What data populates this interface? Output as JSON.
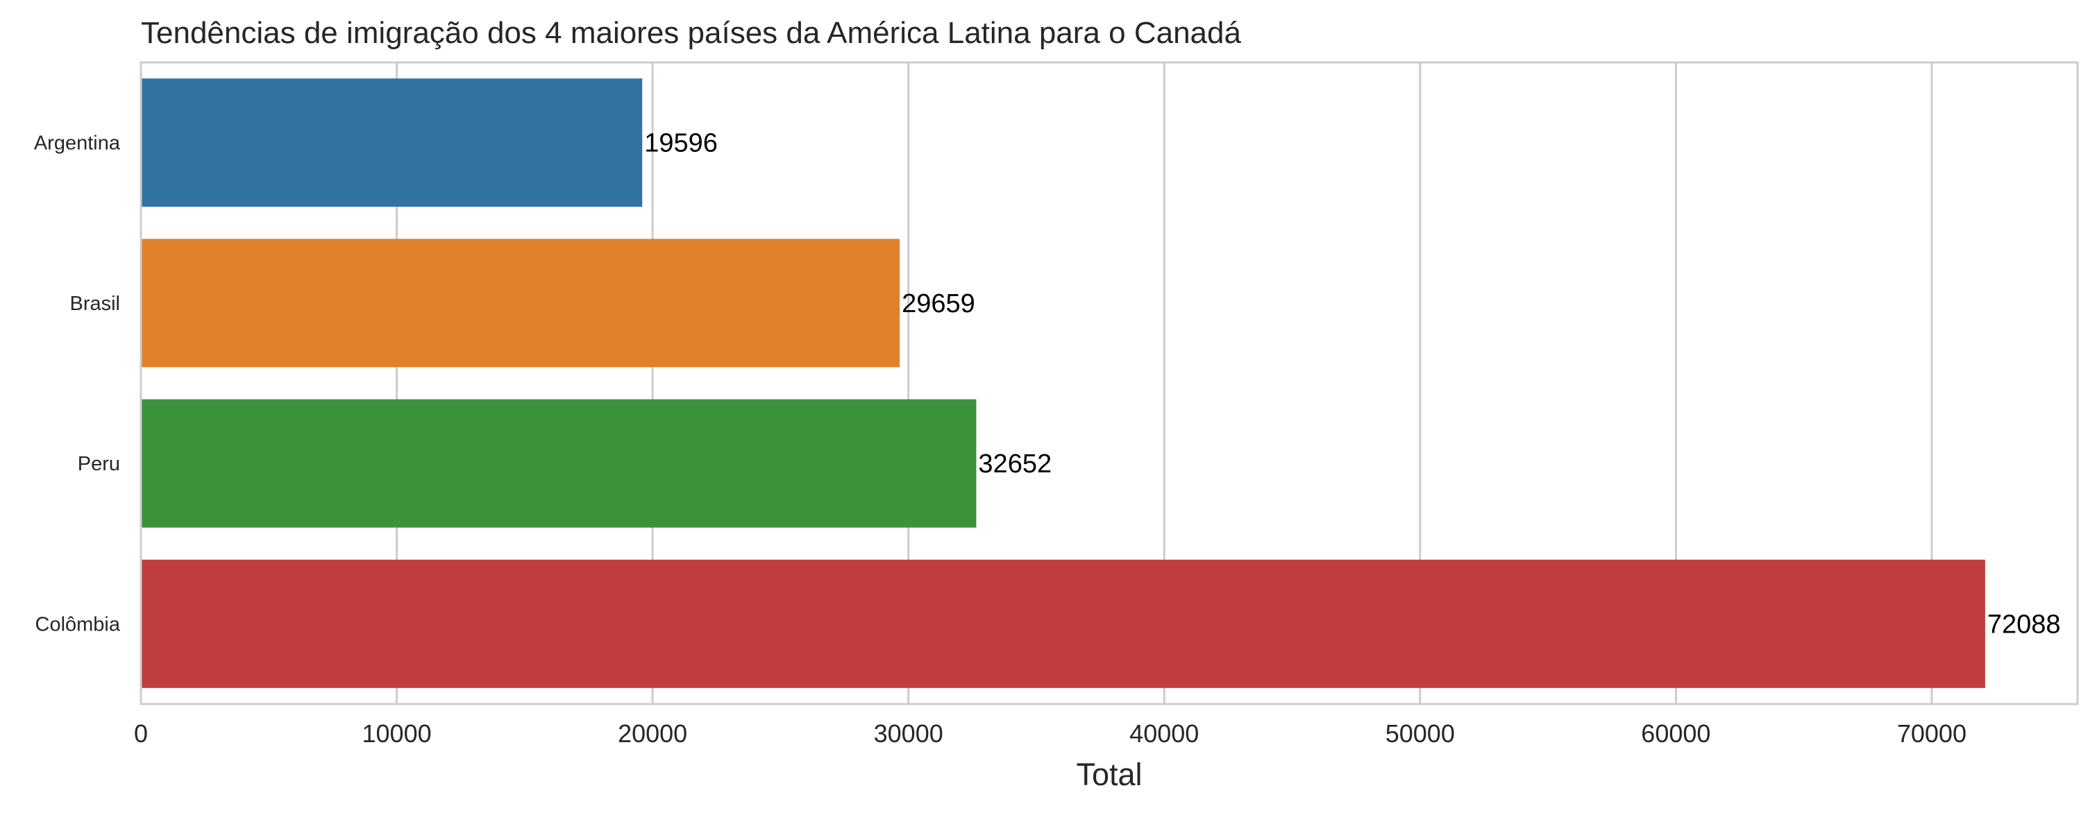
{
  "chart_data": {
    "type": "bar",
    "orientation": "horizontal",
    "title": "Tendências de imigração dos 4 maiores países da América Latina para o Canadá",
    "xlabel": "Total",
    "ylabel": "",
    "categories": [
      "Argentina",
      "Brasil",
      "Peru",
      "Colômbia"
    ],
    "values": [
      19596,
      29659,
      32652,
      72088
    ],
    "colors": [
      "#3274a1",
      "#e1812c",
      "#3a923a",
      "#c03d3e"
    ],
    "xlim": [
      0,
      75700
    ],
    "xticks": [
      0,
      10000,
      20000,
      30000,
      40000,
      50000,
      60000,
      70000
    ],
    "xtick_labels": [
      "0",
      "10000",
      "20000",
      "30000",
      "40000",
      "50000",
      "60000",
      "70000"
    ],
    "data_labels": [
      "19596",
      "29659",
      "32652",
      "72088"
    ],
    "grid": "vertical",
    "legend": "none"
  }
}
